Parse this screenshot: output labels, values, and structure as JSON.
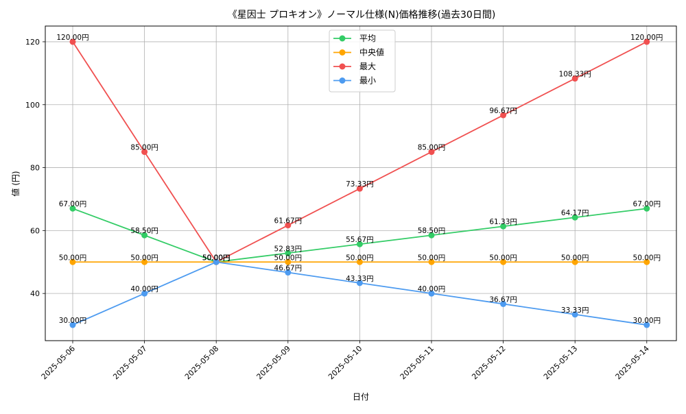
{
  "chart_data": {
    "type": "line",
    "title": "《星因士 プロキオン》ノーマル仕様(N)価格推移(過去30日間)",
    "xlabel": "日付",
    "ylabel": "値 (円)",
    "x": [
      "2025-05-06",
      "2025-05-07",
      "2025-05-08",
      "2025-05-09",
      "2025-05-10",
      "2025-05-11",
      "2025-05-12",
      "2025-05-13",
      "2025-05-14"
    ],
    "ylim": [
      25,
      125
    ],
    "yticks": [
      40,
      60,
      80,
      100,
      120
    ],
    "grid": true,
    "legend_position": "top-center",
    "series": [
      {
        "name": "平均",
        "color": "#33cc66",
        "values": [
          67.0,
          58.5,
          50.0,
          52.83,
          55.67,
          58.5,
          61.33,
          64.17,
          67.0
        ],
        "labels": [
          "67.00円",
          "58.50円",
          "50.00円",
          "52.83円",
          "55.67円",
          "58.50円",
          "61.33円",
          "64.17円",
          "67.00円"
        ]
      },
      {
        "name": "中央値",
        "color": "#ffa500",
        "values": [
          50,
          50,
          50,
          50,
          50,
          50,
          50,
          50,
          50
        ],
        "labels": [
          "50.00円",
          "50.00円",
          "50.00円",
          "50.00円",
          "50.00円",
          "50.00円",
          "50.00円",
          "50.00円",
          "50.00円"
        ]
      },
      {
        "name": "最大",
        "color": "#f05050",
        "values": [
          120.0,
          85.0,
          50.0,
          61.67,
          73.33,
          85.0,
          96.67,
          108.33,
          120.0
        ],
        "labels": [
          "120.00円",
          "85.00円",
          "50.00円",
          "61.67円",
          "73.33円",
          "85.00円",
          "96.67円",
          "108.33円",
          "120.00円"
        ]
      },
      {
        "name": "最小",
        "color": "#4d9bf0",
        "values": [
          30.0,
          40.0,
          50.0,
          46.67,
          43.33,
          40.0,
          36.67,
          33.33,
          30.0
        ],
        "labels": [
          "30.00円",
          "40.00円",
          "50.00円",
          "46.67円",
          "43.33円",
          "40.00円",
          "36.67円",
          "33.33円",
          "30.00円"
        ]
      }
    ]
  }
}
